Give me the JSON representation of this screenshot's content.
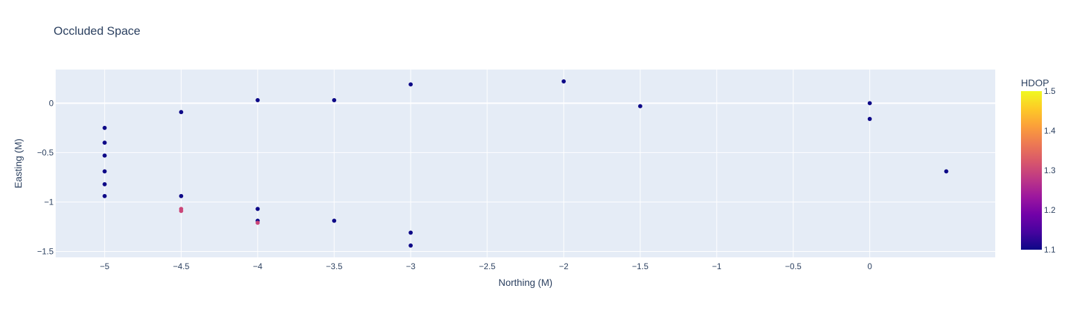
{
  "chart_data": {
    "type": "scatter",
    "title": "Occluded Space",
    "xlabel": "Northing (M)",
    "ylabel": "Easting (M)",
    "xlim": [
      -5.32,
      0.82
    ],
    "ylim": [
      -1.56,
      0.34
    ],
    "x_ticks": [
      -5,
      -4.5,
      -4,
      -3.5,
      -3,
      -2.5,
      -2,
      -1.5,
      -1,
      -0.5,
      0
    ],
    "x_tick_labels": [
      "−5",
      "−4.5",
      "−4",
      "−3.5",
      "−3",
      "−2.5",
      "−2",
      "−1.5",
      "−1",
      "−0.5",
      "0"
    ],
    "y_ticks": [
      0,
      -0.5,
      -1,
      -1.5
    ],
    "y_tick_labels": [
      "0",
      "−0.5",
      "−1",
      "−1.5"
    ],
    "grid": true,
    "colorbar": {
      "title": "HDOP",
      "min": 1.1,
      "max": 1.5,
      "ticks": [
        1.1,
        1.2,
        1.3,
        1.4,
        1.5
      ],
      "tick_labels": [
        "1.1",
        "1.2",
        "1.3",
        "1.4",
        "1.5"
      ],
      "colorscale": [
        "#0d0887",
        "#46039f",
        "#7201a8",
        "#9c179e",
        "#bd3786",
        "#d8576b",
        "#ed7953",
        "#fb9f3a",
        "#fdca26",
        "#f0f921"
      ]
    },
    "points": [
      {
        "x": -5,
        "y": -0.25,
        "hdop": 1.1
      },
      {
        "x": -5,
        "y": -0.4,
        "hdop": 1.1
      },
      {
        "x": -5,
        "y": -0.53,
        "hdop": 1.1
      },
      {
        "x": -5,
        "y": -0.69,
        "hdop": 1.1
      },
      {
        "x": -5,
        "y": -0.82,
        "hdop": 1.1
      },
      {
        "x": -5,
        "y": -0.94,
        "hdop": 1.1
      },
      {
        "x": -4.5,
        "y": -0.09,
        "hdop": 1.1
      },
      {
        "x": -4.5,
        "y": -0.94,
        "hdop": 1.1
      },
      {
        "x": -4.5,
        "y": -1.07,
        "hdop": 1.3
      },
      {
        "x": -4.5,
        "y": -1.09,
        "hdop": 1.3
      },
      {
        "x": -4,
        "y": 0.03,
        "hdop": 1.1
      },
      {
        "x": -4,
        "y": -1.07,
        "hdop": 1.1
      },
      {
        "x": -4,
        "y": -1.19,
        "hdop": 1.1
      },
      {
        "x": -4,
        "y": -1.21,
        "hdop": 1.3
      },
      {
        "x": -3.5,
        "y": 0.03,
        "hdop": 1.1
      },
      {
        "x": -3.5,
        "y": -1.19,
        "hdop": 1.1
      },
      {
        "x": -3,
        "y": 0.19,
        "hdop": 1.1
      },
      {
        "x": -3,
        "y": -1.31,
        "hdop": 1.1
      },
      {
        "x": -3,
        "y": -1.44,
        "hdop": 1.1
      },
      {
        "x": -2,
        "y": 0.22,
        "hdop": 1.1
      },
      {
        "x": -1.5,
        "y": -0.03,
        "hdop": 1.1
      },
      {
        "x": 0,
        "y": 0.0,
        "hdop": 1.1
      },
      {
        "x": 0,
        "y": -0.16,
        "hdop": 1.1
      },
      {
        "x": 0.5,
        "y": -0.69,
        "hdop": 1.1
      }
    ]
  }
}
